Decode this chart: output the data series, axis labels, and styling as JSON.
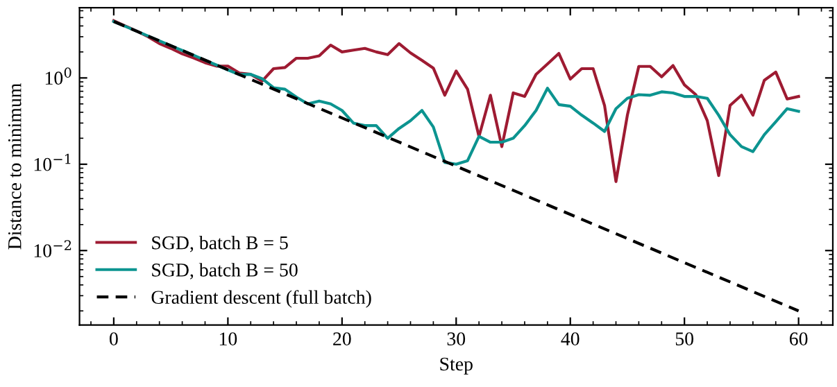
{
  "chart_data": {
    "type": "line",
    "xlabel": "Step",
    "ylabel": "Distance to minimum",
    "log": "y",
    "x": [
      0,
      1,
      2,
      3,
      4,
      5,
      6,
      7,
      8,
      9,
      10,
      11,
      12,
      13,
      14,
      15,
      16,
      17,
      18,
      19,
      20,
      21,
      22,
      23,
      24,
      25,
      26,
      27,
      28,
      29,
      30,
      31,
      32,
      33,
      34,
      35,
      36,
      37,
      38,
      39,
      40,
      41,
      42,
      43,
      44,
      45,
      46,
      47,
      48,
      49,
      50,
      51,
      52,
      53,
      54,
      55,
      56,
      57,
      58,
      59,
      60
    ],
    "series": [
      {
        "name": "SGD, batch B = 5",
        "color": "#9e1b32",
        "line_style": "solid",
        "values": [
          4.6,
          4.0,
          3.5,
          3.0,
          2.5,
          2.2,
          1.9,
          1.7,
          1.5,
          1.37,
          1.37,
          1.14,
          1.1,
          0.92,
          1.28,
          1.32,
          1.69,
          1.69,
          1.8,
          2.4,
          2.0,
          2.1,
          2.2,
          2.0,
          1.86,
          2.5,
          1.95,
          1.6,
          1.3,
          0.63,
          1.2,
          0.74,
          0.21,
          0.63,
          0.16,
          0.67,
          0.61,
          1.1,
          1.45,
          1.92,
          0.97,
          1.28,
          1.28,
          0.48,
          0.063,
          0.37,
          1.36,
          1.36,
          1.03,
          1.39,
          0.83,
          0.64,
          0.32,
          0.074,
          0.48,
          0.63,
          0.37,
          0.94,
          1.17,
          0.57,
          0.61
        ]
      },
      {
        "name": "SGD, batch B = 50",
        "color": "#0c9490",
        "line_style": "solid",
        "values": [
          4.5,
          3.96,
          3.48,
          3.06,
          2.69,
          2.36,
          2.08,
          1.83,
          1.6,
          1.41,
          1.24,
          1.09,
          1.1,
          0.98,
          0.77,
          0.74,
          0.6,
          0.5,
          0.54,
          0.5,
          0.42,
          0.3,
          0.28,
          0.28,
          0.2,
          0.26,
          0.32,
          0.42,
          0.27,
          0.105,
          0.1,
          0.11,
          0.21,
          0.18,
          0.18,
          0.2,
          0.28,
          0.42,
          0.76,
          0.49,
          0.47,
          0.37,
          0.3,
          0.24,
          0.44,
          0.58,
          0.64,
          0.63,
          0.69,
          0.67,
          0.61,
          0.61,
          0.58,
          0.37,
          0.22,
          0.16,
          0.14,
          0.22,
          0.31,
          0.44,
          0.41
        ]
      },
      {
        "name": "Gradient descent (full batch)",
        "color": "#000000",
        "line_style": "dashed",
        "x": [
          0,
          60
        ],
        "values": [
          4.5,
          0.002
        ]
      }
    ],
    "xlim": [
      -3,
      63
    ],
    "xticks": [
      0,
      10,
      20,
      30,
      40,
      50,
      60
    ],
    "ylim": [
      0.00137,
      6.5
    ],
    "yticks": [
      {
        "value": 0.01,
        "label": "10$^{−2}$"
      },
      {
        "value": 0.1,
        "label": "10$^{−1}$"
      },
      {
        "value": 1,
        "label": "10$^{0}$"
      }
    ],
    "grid": false,
    "legend": "lower left",
    "marker": "none"
  }
}
